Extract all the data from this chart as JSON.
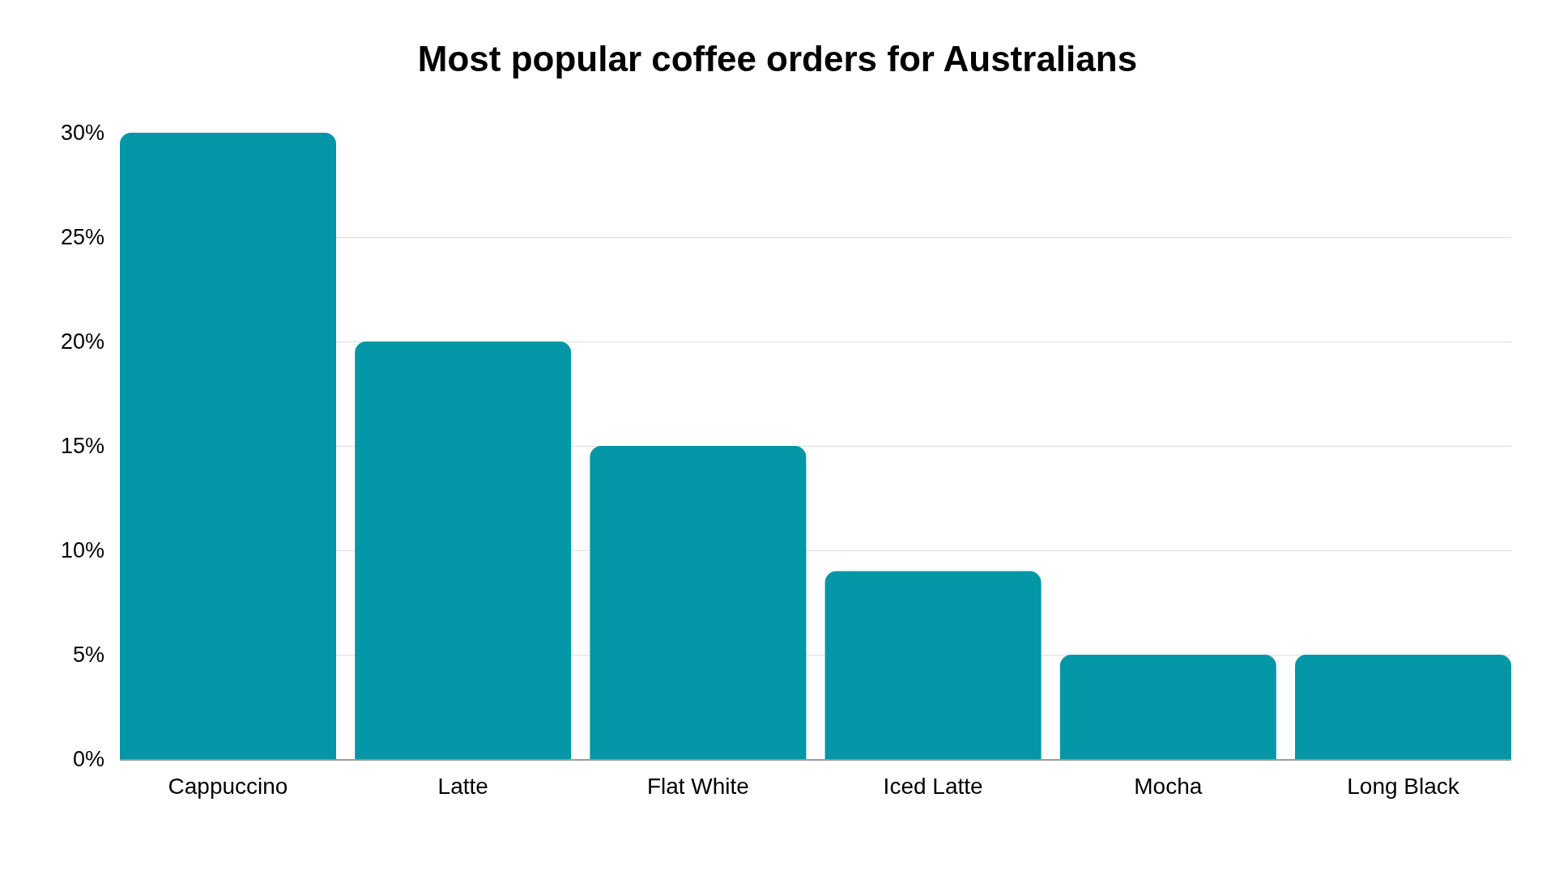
{
  "chart_data": {
    "type": "bar",
    "title": "Most popular coffee orders for Australians",
    "categories": [
      "Cappuccino",
      "Latte",
      "Flat White",
      "Iced Latte",
      "Mocha",
      "Long Black"
    ],
    "values": [
      30,
      20,
      15,
      9,
      5,
      5
    ],
    "color": "#0396a6",
    "ylim": [
      0,
      30
    ],
    "yticks": [
      {
        "value": 0,
        "label": "0%"
      },
      {
        "value": 5,
        "label": "5%"
      },
      {
        "value": 10,
        "label": "10%"
      },
      {
        "value": 15,
        "label": "15%"
      },
      {
        "value": 20,
        "label": "20%"
      },
      {
        "value": 25,
        "label": "25%"
      },
      {
        "value": 30,
        "label": "30%"
      }
    ],
    "grid": "y"
  }
}
